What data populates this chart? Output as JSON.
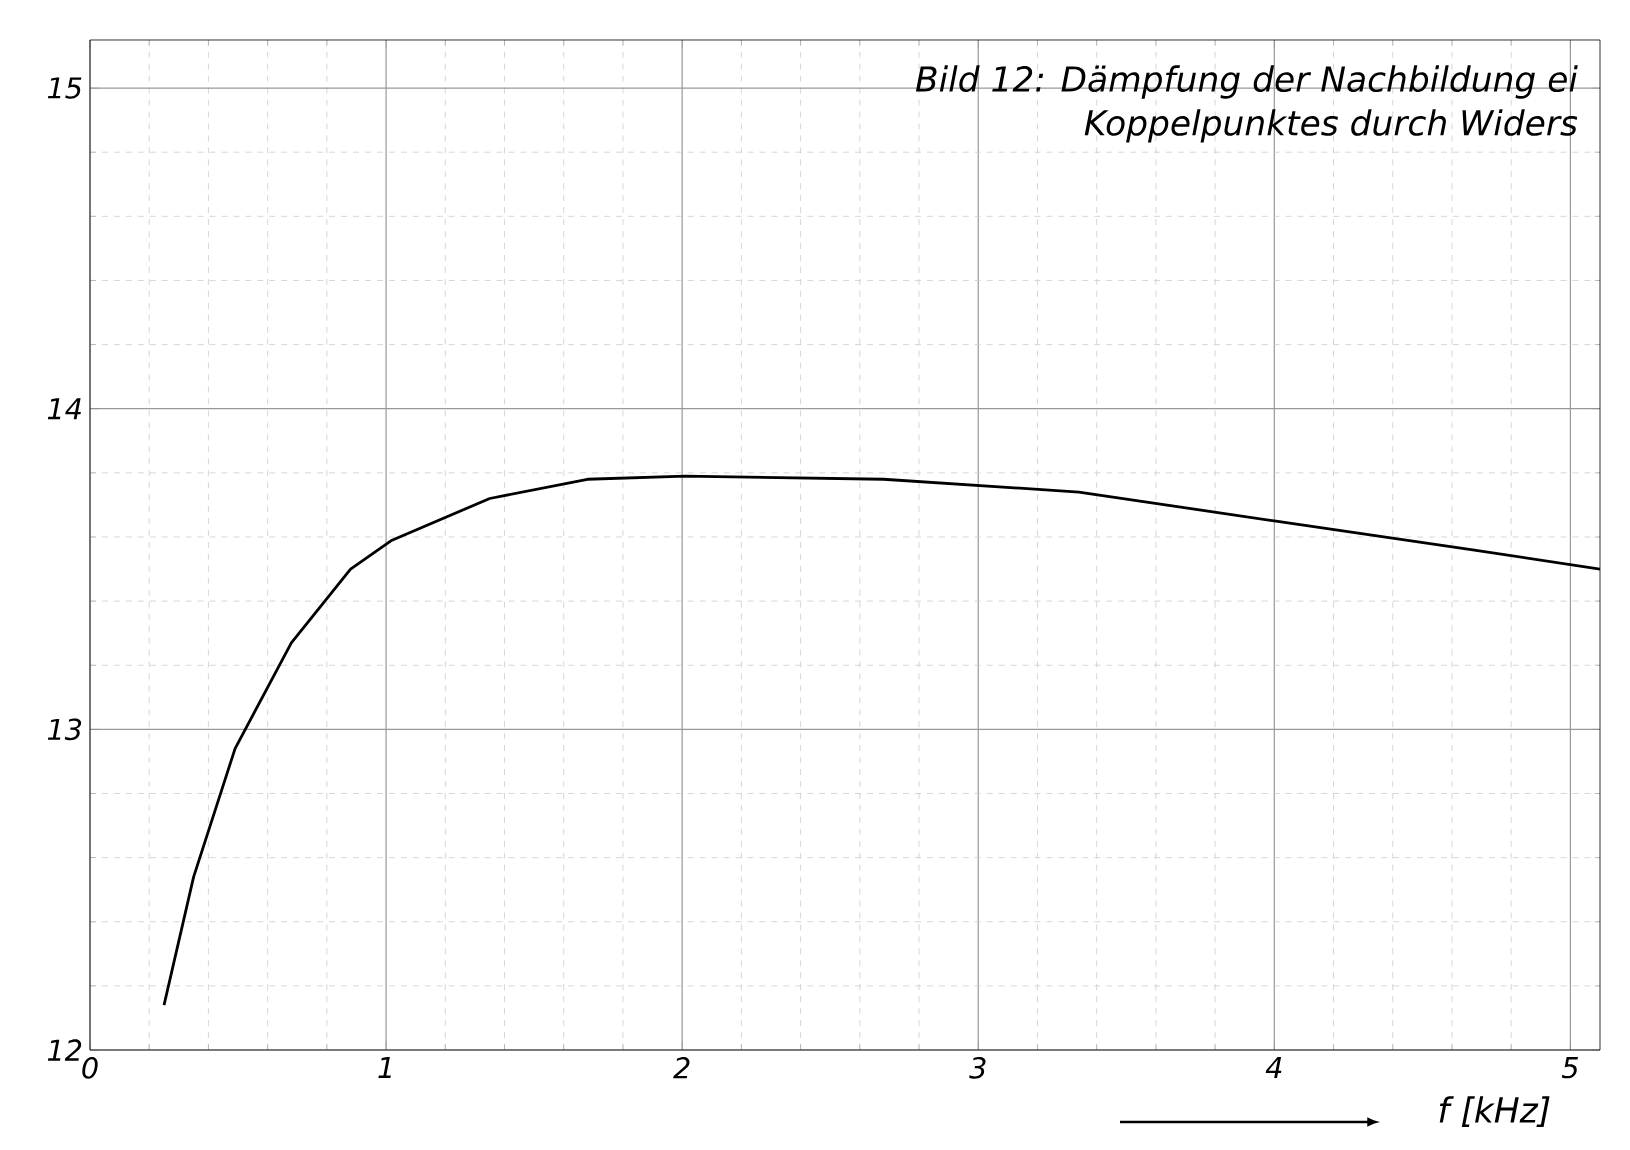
{
  "chart_data": {
    "type": "line",
    "title": "Bild 12: Dämpfung der Nachbildung ei",
    "subtitle": "Koppelpunktes durch Widers",
    "xlabel": "f [kHz]",
    "x": [
      0.25,
      0.35,
      0.49,
      0.68,
      0.88,
      1.02,
      1.35,
      1.68,
      2.01,
      2.68,
      3.34,
      4.0,
      4.67,
      5.1
    ],
    "series": [
      {
        "color": "#000000",
        "values": [
          12.14,
          12.54,
          12.94,
          13.27,
          13.5,
          13.59,
          13.72,
          13.78,
          13.79,
          13.78,
          13.74,
          13.65,
          13.56,
          13.5
        ]
      }
    ],
    "xlim": [
      0,
      5.1
    ],
    "ylim": [
      12,
      15.15
    ],
    "xticks": [
      0,
      1,
      2,
      3,
      4,
      5
    ],
    "yticks": [
      12,
      13,
      14,
      15
    ],
    "grid": true,
    "marker": "none",
    "line_style": "solid"
  }
}
